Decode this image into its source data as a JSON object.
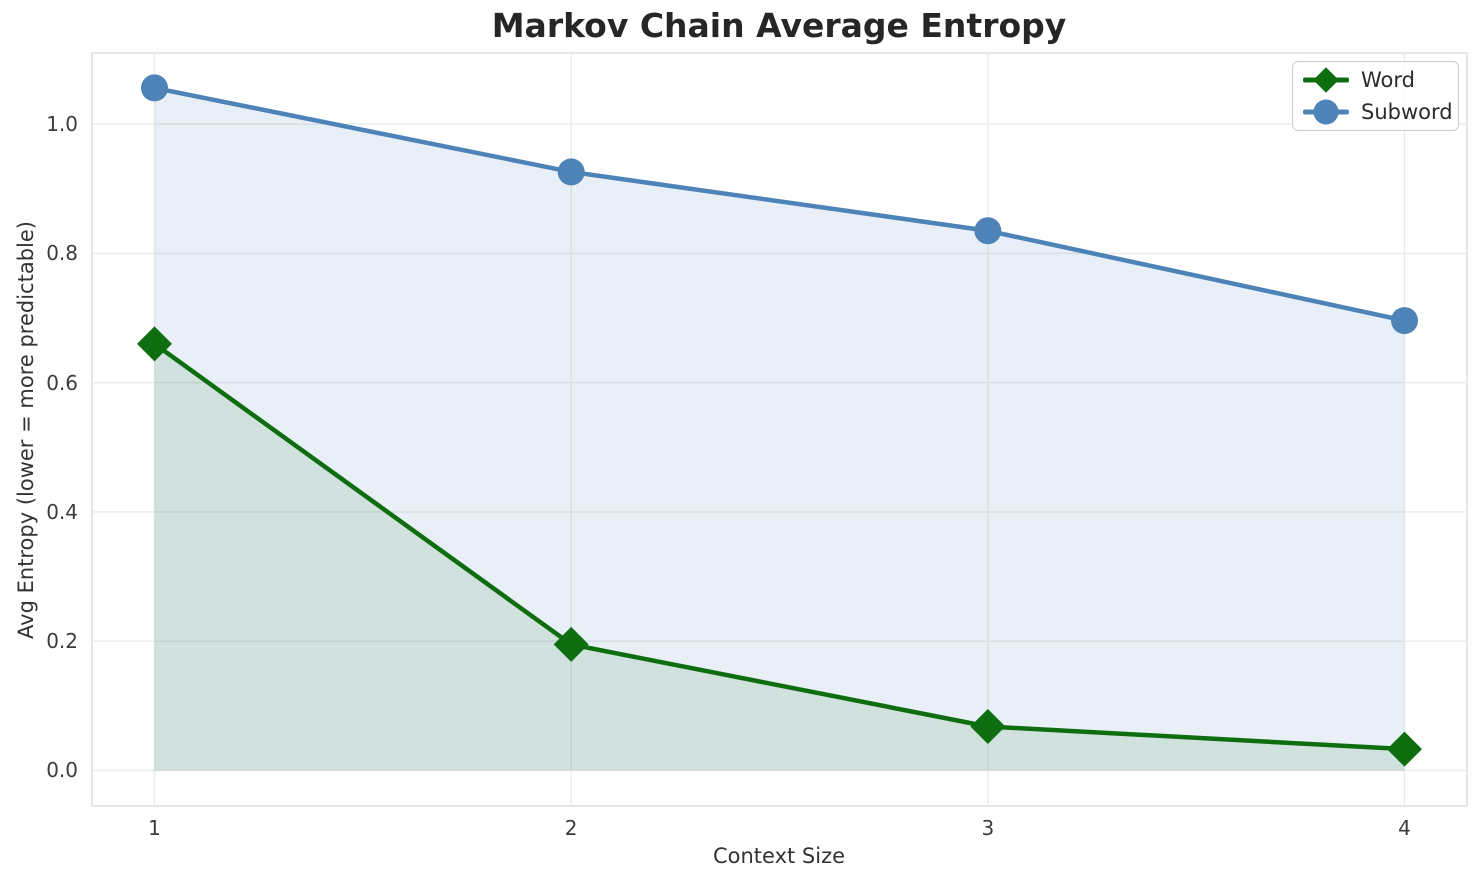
{
  "chart_data": {
    "type": "line",
    "title": "Markov Chain Average Entropy",
    "xlabel": "Context Size",
    "ylabel": "Avg Entropy (lower = more predictable)",
    "x": [
      1,
      2,
      3,
      4
    ],
    "xtick_labels": [
      "1",
      "2",
      "3",
      "4"
    ],
    "ytick_values": [
      0.0,
      0.2,
      0.4,
      0.6,
      0.8,
      1.0
    ],
    "ytick_labels": [
      "0.0",
      "0.2",
      "0.4",
      "0.6",
      "0.8",
      "1.0"
    ],
    "xlim": [
      0.85,
      4.15
    ],
    "ylim": [
      -0.055,
      1.11
    ],
    "grid": true,
    "grid_color": "#ebebeb",
    "spine_color": "#dddddd",
    "legend_position": "upper right",
    "series": [
      {
        "name": "Word",
        "marker": "diamond",
        "color": "#0e6d0e",
        "fill_color": "rgba(14,109,14,0.10)",
        "values": [
          0.66,
          0.195,
          0.068,
          0.033
        ]
      },
      {
        "name": "Subword",
        "marker": "circle",
        "color": "#4d83b7",
        "fill_color": "rgba(77,131,183,0.13)",
        "values": [
          1.056,
          0.926,
          0.835,
          0.696
        ]
      }
    ]
  }
}
